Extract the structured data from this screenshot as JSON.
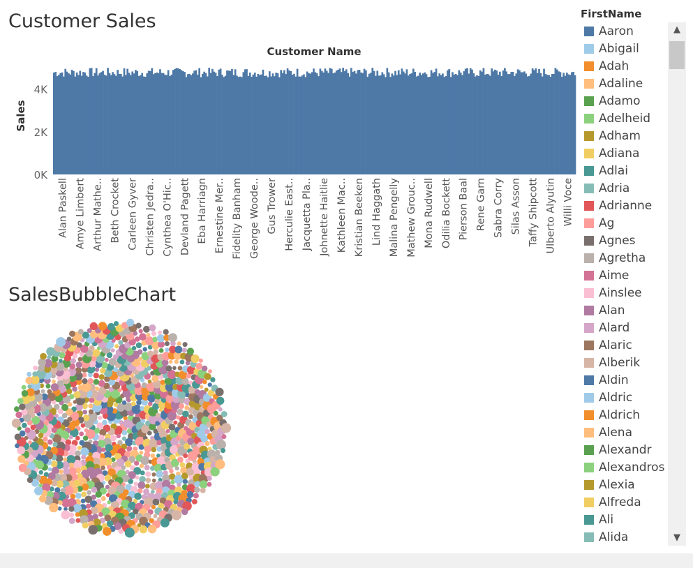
{
  "chart_data": [
    {
      "type": "bar",
      "title": "Customer Sales",
      "header": "Customer Name",
      "xlabel": "",
      "ylabel": "Sales",
      "ylim": [
        0,
        5000
      ],
      "y_ticks": [
        "0K",
        "2K",
        "4K"
      ],
      "bar_count": 320,
      "bar_value_range": [
        4550,
        5000
      ],
      "bar_color": "#4e79a7",
      "x_tick_labels": [
        "Alan Paskell",
        "Amye Limbert",
        "Arthur Mathe..",
        "Beth Crocket",
        "Carleen Gyver",
        "Christen Jedra..",
        "Cynthea O'Hic..",
        "Devland Pagett",
        "Eba Harriagn",
        "Ernestine Mer..",
        "Fidelity Banham",
        "George Woode..",
        "Gus Trower",
        "Herculie East..",
        "Jacquetta Pla..",
        "Johnette Haitlie",
        "Kathleen Mac..",
        "Kristian Beeken",
        "Lind Haggath",
        "Malina Pengelly",
        "Mathew Grouc..",
        "Mona Rudwell",
        "Odilia Bockett",
        "Pierson Baal",
        "Rene Garn",
        "Sabra Corry",
        "Silas Asson",
        "Taffy Shipcott",
        "Ulberto Alyutin",
        "Willi Voce"
      ]
    },
    {
      "type": "scatter",
      "title": "SalesBubbleChart",
      "description": "packed bubble chart, one bubble per customer, colored by FirstName",
      "bubble_count": 1000
    }
  ],
  "legend": {
    "title": "FirstName",
    "items": [
      {
        "label": "Aaron",
        "color": "#4e79a7"
      },
      {
        "label": "Abigail",
        "color": "#a0cbe8"
      },
      {
        "label": "Adah",
        "color": "#f28e2b"
      },
      {
        "label": "Adaline",
        "color": "#ffbe7d"
      },
      {
        "label": "Adamo",
        "color": "#59a14f"
      },
      {
        "label": "Adelheid",
        "color": "#8cd17d"
      },
      {
        "label": "Adham",
        "color": "#b6992d"
      },
      {
        "label": "Adiana",
        "color": "#f1ce63"
      },
      {
        "label": "Adlai",
        "color": "#499894"
      },
      {
        "label": "Adria",
        "color": "#86bcb6"
      },
      {
        "label": "Adrianne",
        "color": "#e15759"
      },
      {
        "label": "Ag",
        "color": "#ff9d9a"
      },
      {
        "label": "Agnes",
        "color": "#79706e"
      },
      {
        "label": "Agretha",
        "color": "#bab0ac"
      },
      {
        "label": "Aime",
        "color": "#d37295"
      },
      {
        "label": "Ainslee",
        "color": "#fabfd2"
      },
      {
        "label": "Alan",
        "color": "#b07aa1"
      },
      {
        "label": "Alard",
        "color": "#d4a6c8"
      },
      {
        "label": "Alaric",
        "color": "#9d7660"
      },
      {
        "label": "Alberik",
        "color": "#d7b5a6"
      },
      {
        "label": "Aldin",
        "color": "#4e79a7"
      },
      {
        "label": "Aldric",
        "color": "#a0cbe8"
      },
      {
        "label": "Aldrich",
        "color": "#f28e2b"
      },
      {
        "label": "Alena",
        "color": "#ffbe7d"
      },
      {
        "label": "Alexandr",
        "color": "#59a14f"
      },
      {
        "label": "Alexandros",
        "color": "#8cd17d"
      },
      {
        "label": "Alexia",
        "color": "#b6992d"
      },
      {
        "label": "Alfreda",
        "color": "#f1ce63"
      },
      {
        "label": "Ali",
        "color": "#499894"
      },
      {
        "label": "Alida",
        "color": "#86bcb6"
      }
    ]
  },
  "palette": [
    "#4e79a7",
    "#a0cbe8",
    "#f28e2b",
    "#ffbe7d",
    "#59a14f",
    "#8cd17d",
    "#b6992d",
    "#f1ce63",
    "#499894",
    "#86bcb6",
    "#e15759",
    "#ff9d9a",
    "#79706e",
    "#bab0ac",
    "#d37295",
    "#fabfd2",
    "#b07aa1",
    "#d4a6c8",
    "#9d7660",
    "#d7b5a6"
  ],
  "scrollbar": {
    "up_icon": "▲",
    "down_icon": "▼"
  }
}
